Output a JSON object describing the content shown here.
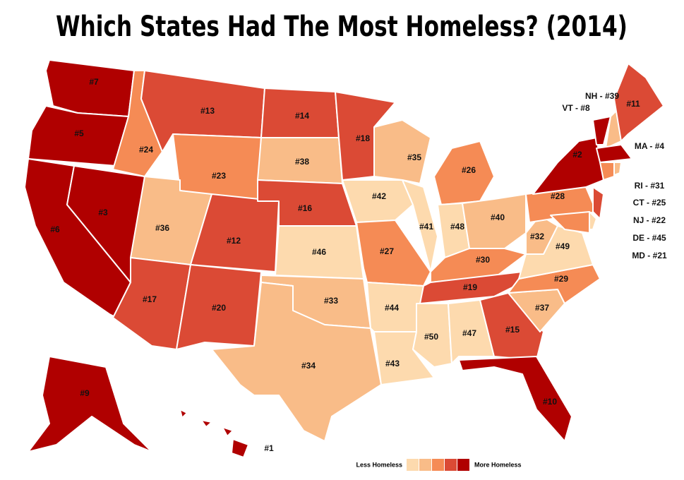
{
  "title": "Which States Had The Most Homeless? (2014)",
  "states": [
    {
      "label": "#7",
      "color": "#b00000"
    },
    {
      "label": "#5",
      "color": "#b00000"
    },
    {
      "label": "#6",
      "color": "#b00000"
    },
    {
      "label": "#3",
      "color": "#b00000"
    },
    {
      "label": "#24",
      "color": "#f58b55"
    },
    {
      "label": "#13",
      "color": "#db4a35"
    },
    {
      "label": "#23",
      "color": "#f58b55"
    },
    {
      "label": "#36",
      "color": "#f9bc88"
    },
    {
      "label": "#12",
      "color": "#db4a35"
    },
    {
      "label": "#17",
      "color": "#db4a35"
    },
    {
      "label": "#20",
      "color": "#db4a35"
    },
    {
      "label": "#14",
      "color": "#db4a35"
    },
    {
      "label": "#38",
      "color": "#f9bc88"
    },
    {
      "label": "#16",
      "color": "#db4a35"
    },
    {
      "label": "#46",
      "color": "#fddaae"
    },
    {
      "label": "#33",
      "color": "#f9bc88"
    },
    {
      "label": "#34",
      "color": "#f9bc88"
    },
    {
      "label": "#18",
      "color": "#db4a35"
    },
    {
      "label": "#42",
      "color": "#fddaae"
    },
    {
      "label": "#27",
      "color": "#f58b55"
    },
    {
      "label": "#44",
      "color": "#fddaae"
    },
    {
      "label": "#43",
      "color": "#fddaae"
    },
    {
      "label": "#35",
      "color": "#f9bc88"
    },
    {
      "label": "#41",
      "color": "#fddaae"
    },
    {
      "label": "#26",
      "color": "#f58b55"
    },
    {
      "label": "#48",
      "color": "#fddaae"
    },
    {
      "label": "#40",
      "color": "#f9bc88"
    },
    {
      "label": "#30",
      "color": "#f58b55"
    },
    {
      "label": "#19",
      "color": "#db4a35"
    },
    {
      "label": "#50",
      "color": "#fddaae"
    },
    {
      "label": "#47",
      "color": "#fddaae"
    },
    {
      "label": "#15",
      "color": "#db4a35"
    },
    {
      "label": "#10",
      "color": "#b00000"
    },
    {
      "label": "#37",
      "color": "#f9bc88"
    },
    {
      "label": "#29",
      "color": "#f58b55"
    },
    {
      "label": "#49",
      "color": "#fddaae"
    },
    {
      "label": "#32",
      "color": "#f9bc88"
    },
    {
      "label": "#28",
      "color": "#f58b55"
    },
    {
      "label": "#2",
      "color": "#b00000"
    },
    {
      "label": "VT - #8",
      "color": "#b00000"
    },
    {
      "label": "NH - #39",
      "color": "#f9bc88"
    },
    {
      "label": "#11",
      "color": "#db4a35"
    },
    {
      "label": "MA - #4",
      "color": "#b00000"
    },
    {
      "label": "CT - #25",
      "color": "#f58b55"
    },
    {
      "label": "RI - #31",
      "color": "#f9bc88"
    },
    {
      "label": "NJ - #22",
      "color": "#db4a35"
    },
    {
      "label": "DE - #45",
      "color": "#fddaae"
    },
    {
      "label": "MD - #21",
      "color": "#f58b55"
    },
    {
      "label": "#9",
      "color": "#b00000"
    },
    {
      "label": "#1",
      "color": "#b00000"
    }
  ],
  "legend": {
    "low": "Less Homeless",
    "high": "More Homeless",
    "colors": [
      "#fddaae",
      "#f9bc88",
      "#f58b55",
      "#db4a35",
      "#b00000"
    ]
  }
}
